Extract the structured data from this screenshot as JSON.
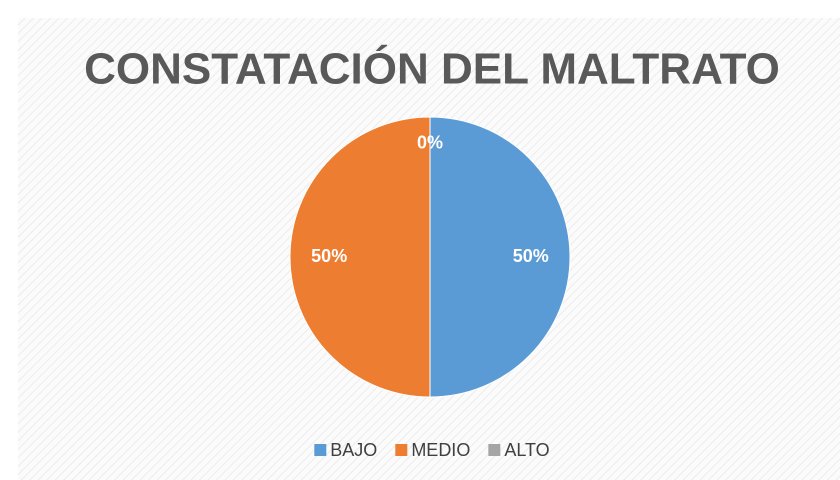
{
  "chart_data": {
    "type": "pie",
    "title": "CONSTATACIÓN DEL MALTRATO",
    "categories": [
      "BAJO",
      "MEDIO",
      "ALTO"
    ],
    "values": [
      50,
      50,
      0
    ],
    "value_labels": [
      "50%",
      "50%",
      "0%"
    ],
    "colors": [
      "#5b9bd5",
      "#ed7d31",
      "#a5a5a5"
    ],
    "legend": "bottom"
  }
}
